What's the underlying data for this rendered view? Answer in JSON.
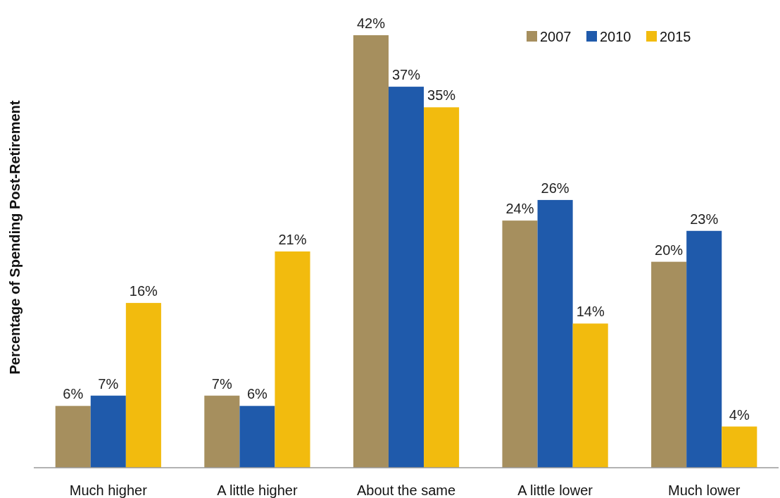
{
  "chart_data": {
    "type": "bar",
    "ylabel": "Percentage of Spending Post-Retirement",
    "categories": [
      "Much higher",
      "A little higher",
      "About the same",
      "A little lower",
      "Much lower"
    ],
    "series": [
      {
        "name": "2007",
        "color": "#a68f5e",
        "values": [
          6,
          7,
          42,
          24,
          20
        ],
        "value_labels": [
          "6%",
          "7%",
          "42%",
          "24%",
          "20%"
        ]
      },
      {
        "name": "2010",
        "color": "#1f5aab",
        "values": [
          7,
          6,
          37,
          26,
          23
        ],
        "value_labels": [
          "7%",
          "6%",
          "37%",
          "26%",
          "23%"
        ]
      },
      {
        "name": "2015",
        "color": "#f2bb0e",
        "values": [
          16,
          21,
          35,
          14,
          4
        ],
        "value_labels": [
          "16%",
          "21%",
          "35%",
          "14%",
          "4%"
        ]
      }
    ],
    "legend": "top right"
  }
}
